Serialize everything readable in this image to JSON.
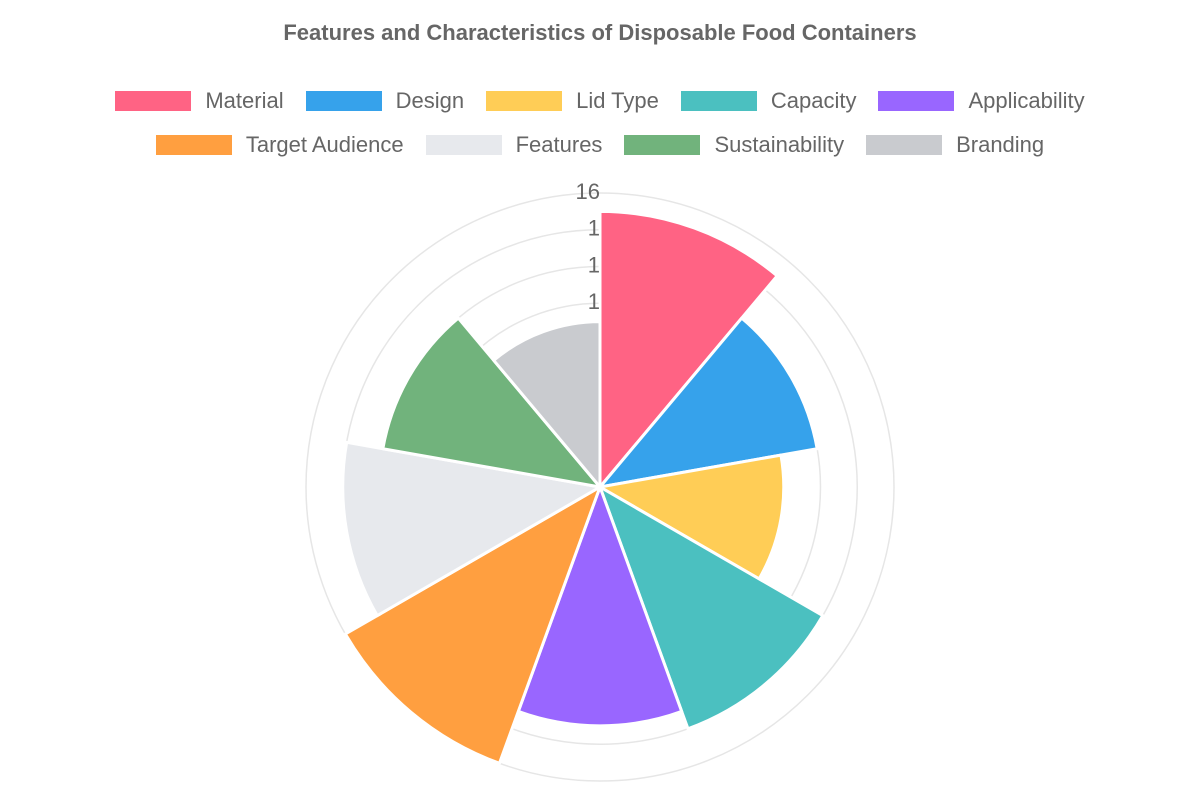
{
  "chart_data": {
    "type": "polarArea",
    "title": "Features and Characteristics of Disposable Food Containers",
    "categories": [
      "Material",
      "Design",
      "Lid Type",
      "Capacity",
      "Applicability",
      "Target Audience",
      "Features",
      "Sustainability",
      "Branding"
    ],
    "values": [
      15,
      12,
      10,
      14,
      13,
      16,
      14,
      12,
      9
    ],
    "colors": [
      "#ff6384",
      "#36a2eb",
      "#ffcd56",
      "#4bc0c0",
      "#9966ff",
      "#ff9f40",
      "#e7e9ed",
      "#71b37c",
      "#c9cbcf"
    ],
    "r_axis": {
      "min": 0,
      "max": 16,
      "ticks": [
        "16",
        "1",
        "1",
        "1"
      ]
    },
    "legend_position": "top",
    "grid": true
  }
}
